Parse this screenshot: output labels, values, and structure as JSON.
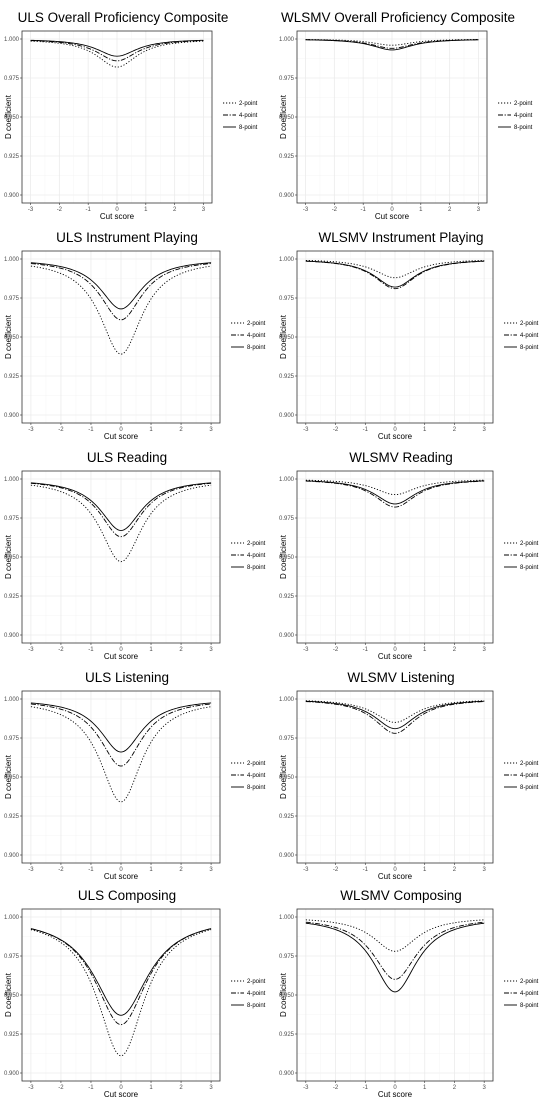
{
  "chart_data": [
    {
      "type": "line",
      "title": "ULS Overall Proficiency Composite",
      "xlabel": "Cut score",
      "ylabel": "D coefficient",
      "xlim": [
        -3,
        3
      ],
      "ylim": [
        0.9,
        1.0
      ],
      "x_ticks": [
        "-3",
        "-2",
        "-1",
        "0",
        "1",
        "2",
        "3"
      ],
      "y_ticks": [
        "0.900",
        "0.925",
        "0.950",
        "0.975",
        "1.000"
      ],
      "grid": true,
      "legend": "right",
      "series": [
        {
          "name": "2-point",
          "dip": 0.982,
          "width": 0.85
        },
        {
          "name": "4-point",
          "dip": 0.986,
          "width": 0.85
        },
        {
          "name": "8-point",
          "dip": 0.989,
          "width": 0.85
        }
      ]
    },
    {
      "type": "line",
      "title": "WLSMV Overall Proficiency Composite",
      "xlabel": "Cut score",
      "ylabel": "D coefficient",
      "xlim": [
        -3,
        3
      ],
      "ylim": [
        0.9,
        1.0
      ],
      "x_ticks": [
        "-3",
        "-2",
        "-1",
        "0",
        "1",
        "2",
        "3"
      ],
      "y_ticks": [
        "0.900",
        "0.925",
        "0.950",
        "0.975",
        "1.000"
      ],
      "grid": true,
      "legend": "right",
      "series": [
        {
          "name": "2-point",
          "dip": 0.996,
          "width": 0.85
        },
        {
          "name": "4-point",
          "dip": 0.994,
          "width": 0.85
        },
        {
          "name": "8-point",
          "dip": 0.993,
          "width": 0.85
        }
      ]
    },
    {
      "type": "line",
      "title": "ULS Instrument Playing",
      "xlabel": "Cut score",
      "ylabel": "D coefficient",
      "xlim": [
        -3,
        3
      ],
      "ylim": [
        0.9,
        1.0
      ],
      "x_ticks": [
        "-3",
        "-2",
        "-1",
        "0",
        "1",
        "2",
        "3"
      ],
      "y_ticks": [
        "0.900",
        "0.925",
        "0.950",
        "0.975",
        "1.000"
      ],
      "grid": true,
      "legend": "right",
      "series": [
        {
          "name": "2-point",
          "dip": 0.939,
          "width": 0.85
        },
        {
          "name": "4-point",
          "dip": 0.961,
          "width": 0.85
        },
        {
          "name": "8-point",
          "dip": 0.968,
          "width": 0.85
        }
      ]
    },
    {
      "type": "line",
      "title": "WLSMV Instrument Playing",
      "xlabel": "Cut score",
      "ylabel": "D coefficient",
      "xlim": [
        -3,
        3
      ],
      "ylim": [
        0.9,
        1.0
      ],
      "x_ticks": [
        "-3",
        "-2",
        "-1",
        "0",
        "1",
        "2",
        "3"
      ],
      "y_ticks": [
        "0.900",
        "0.925",
        "0.950",
        "0.975",
        "1.000"
      ],
      "grid": true,
      "legend": "right",
      "series": [
        {
          "name": "2-point",
          "dip": 0.988,
          "width": 0.85
        },
        {
          "name": "4-point",
          "dip": 0.981,
          "width": 0.85
        },
        {
          "name": "8-point",
          "dip": 0.982,
          "width": 0.85
        }
      ]
    },
    {
      "type": "line",
      "title": "ULS Reading",
      "xlabel": "Cut score",
      "ylabel": "D coefficient",
      "xlim": [
        -3,
        3
      ],
      "ylim": [
        0.9,
        1.0
      ],
      "x_ticks": [
        "-3",
        "-2",
        "-1",
        "0",
        "1",
        "2",
        "3"
      ],
      "y_ticks": [
        "0.900",
        "0.925",
        "0.950",
        "0.975",
        "1.000"
      ],
      "grid": true,
      "legend": "right",
      "series": [
        {
          "name": "2-point",
          "dip": 0.947,
          "width": 0.85
        },
        {
          "name": "4-point",
          "dip": 0.963,
          "width": 0.85
        },
        {
          "name": "8-point",
          "dip": 0.967,
          "width": 0.85
        }
      ]
    },
    {
      "type": "line",
      "title": "WLSMV Reading",
      "xlabel": "Cut score",
      "ylabel": "D coefficient",
      "xlim": [
        -3,
        3
      ],
      "ylim": [
        0.9,
        1.0
      ],
      "x_ticks": [
        "-3",
        "-2",
        "-1",
        "0",
        "1",
        "2",
        "3"
      ],
      "y_ticks": [
        "0.900",
        "0.925",
        "0.950",
        "0.975",
        "1.000"
      ],
      "grid": true,
      "legend": "right",
      "series": [
        {
          "name": "2-point",
          "dip": 0.99,
          "width": 0.85
        },
        {
          "name": "4-point",
          "dip": 0.982,
          "width": 0.85
        },
        {
          "name": "8-point",
          "dip": 0.984,
          "width": 0.85
        }
      ]
    },
    {
      "type": "line",
      "title": "ULS Listening",
      "xlabel": "Cut score",
      "ylabel": "D coefficient",
      "xlim": [
        -3,
        3
      ],
      "ylim": [
        0.9,
        1.0
      ],
      "x_ticks": [
        "-3",
        "-2",
        "-1",
        "0",
        "1",
        "2",
        "3"
      ],
      "y_ticks": [
        "0.900",
        "0.925",
        "0.950",
        "0.975",
        "1.000"
      ],
      "grid": true,
      "legend": "right",
      "series": [
        {
          "name": "2-point",
          "dip": 0.934,
          "width": 0.85
        },
        {
          "name": "4-point",
          "dip": 0.957,
          "width": 0.85
        },
        {
          "name": "8-point",
          "dip": 0.966,
          "width": 0.85
        }
      ]
    },
    {
      "type": "line",
      "title": "WLSMV Listening",
      "xlabel": "Cut score",
      "ylabel": "D coefficient",
      "xlim": [
        -3,
        3
      ],
      "ylim": [
        0.9,
        1.0
      ],
      "x_ticks": [
        "-3",
        "-2",
        "-1",
        "0",
        "1",
        "2",
        "3"
      ],
      "y_ticks": [
        "0.900",
        "0.925",
        "0.950",
        "0.975",
        "1.000"
      ],
      "grid": true,
      "legend": "right",
      "series": [
        {
          "name": "2-point",
          "dip": 0.985,
          "width": 0.85
        },
        {
          "name": "4-point",
          "dip": 0.978,
          "width": 0.85
        },
        {
          "name": "8-point",
          "dip": 0.981,
          "width": 0.85
        }
      ]
    },
    {
      "type": "line",
      "title": "ULS Composing",
      "xlabel": "Cut score",
      "ylabel": "D coefficient",
      "xlim": [
        -3,
        3
      ],
      "ylim": [
        0.9,
        1.0
      ],
      "x_ticks": [
        "-3",
        "-2",
        "-1",
        "0",
        "1",
        "2",
        "3"
      ],
      "y_ticks": [
        "0.900",
        "0.925",
        "0.950",
        "0.975",
        "1.000"
      ],
      "grid": true,
      "legend": "right",
      "series": [
        {
          "name": "2-point",
          "dip": 0.911,
          "width": 0.95
        },
        {
          "name": "4-point",
          "dip": 0.931,
          "width": 1.05
        },
        {
          "name": "8-point",
          "dip": 0.937,
          "width": 1.1
        }
      ]
    },
    {
      "type": "line",
      "title": "WLSMV Composing",
      "xlabel": "Cut score",
      "ylabel": "D coefficient",
      "xlim": [
        -3,
        3
      ],
      "ylim": [
        0.9,
        1.0
      ],
      "x_ticks": [
        "-3",
        "-2",
        "-1",
        "0",
        "1",
        "2",
        "3"
      ],
      "y_ticks": [
        "0.900",
        "0.925",
        "0.950",
        "0.975",
        "1.000"
      ],
      "grid": true,
      "legend": "right",
      "series": [
        {
          "name": "2-point",
          "dip": 0.978,
          "width": 0.9
        },
        {
          "name": "4-point",
          "dip": 0.96,
          "width": 0.9
        },
        {
          "name": "8-point",
          "dip": 0.952,
          "width": 0.9
        }
      ]
    }
  ]
}
